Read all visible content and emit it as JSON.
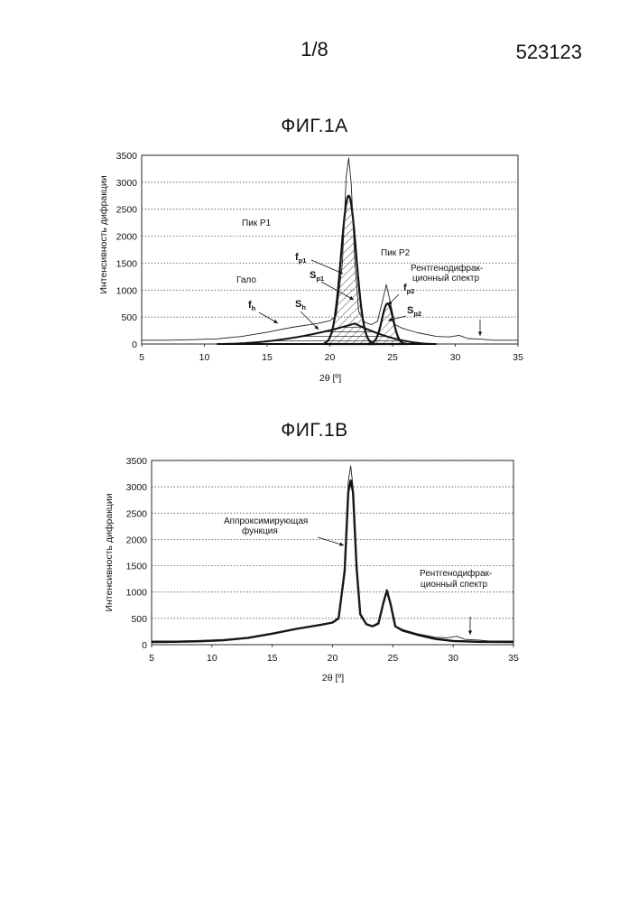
{
  "header": {
    "page_number": "1/8",
    "patent_number": "523123"
  },
  "chart_data": [
    {
      "type": "line",
      "title": "ФИГ.1A",
      "xlabel": "2θ [º]",
      "ylabel": "Интенсивность дифракции",
      "xlim": [
        5,
        35
      ],
      "ylim": [
        0,
        3500
      ],
      "x_ticks": [
        "5",
        "10",
        "15",
        "20",
        "25",
        "30",
        "35"
      ],
      "y_ticks": [
        "0",
        "500",
        "1000",
        "1500",
        "2000",
        "2500",
        "3000",
        "3500"
      ],
      "grid": "horizontal-dotted",
      "spectrum": {
        "x": [
          5,
          7,
          9,
          11,
          13,
          15,
          17,
          19,
          20,
          20.5,
          21,
          21.3,
          21.5,
          21.7,
          22,
          22.3,
          22.8,
          23.3,
          23.8,
          24.2,
          24.5,
          24.8,
          25.2,
          25.8,
          27,
          28.5,
          29.5,
          30.3,
          31,
          32,
          33,
          34,
          35
        ],
        "y": [
          70,
          70,
          80,
          95,
          140,
          220,
          310,
          380,
          430,
          520,
          1500,
          3100,
          3450,
          3000,
          1500,
          600,
          400,
          360,
          420,
          800,
          1100,
          800,
          360,
          290,
          210,
          140,
          130,
          160,
          100,
          90,
          70,
          70,
          70
        ]
      },
      "peaks": [
        {
          "label": "Пик Р1",
          "center": 21.5,
          "height": 2750,
          "width": 0.6
        },
        {
          "label": "Пик Р2",
          "center": 24.6,
          "height": 750,
          "width": 0.45
        }
      ],
      "halo": {
        "label": "Гало",
        "start": 11,
        "center": 22,
        "end": 28.5,
        "height": 380
      },
      "annotations": {
        "peak_p1": "Пик Р1",
        "peak_p2": "Пик Р2",
        "halo": "Гало",
        "spectrum_line1": "Рентгенодифрак-",
        "spectrum_line2": "ционный спектр",
        "fp1": "f",
        "fp1_sub": "p1",
        "sp1": "S",
        "sp1_sub": "p1",
        "fp2": "f",
        "fp2_sub": "p2",
        "sp2": "S",
        "sp2_sub": "p2",
        "fh": "f",
        "fh_sub": "h",
        "sh": "S",
        "sh_sub": "h"
      }
    },
    {
      "type": "line",
      "title": "ФИГ.1B",
      "xlabel": "2θ [º]",
      "ylabel": "Интенсивность дифракции",
      "xlim": [
        5,
        35
      ],
      "ylim": [
        0,
        3500
      ],
      "x_ticks": [
        "5",
        "10",
        "15",
        "20",
        "25",
        "30",
        "35"
      ],
      "y_ticks": [
        "0",
        "500",
        "1000",
        "1500",
        "2000",
        "2500",
        "3000",
        "3500"
      ],
      "grid": "horizontal-dotted",
      "spectrum": {
        "x": [
          5,
          7,
          9,
          11,
          13,
          15,
          17,
          19,
          20,
          20.5,
          21,
          21.3,
          21.5,
          21.7,
          22,
          22.3,
          22.8,
          23.3,
          23.8,
          24.2,
          24.5,
          24.8,
          25.2,
          25.8,
          27,
          28.5,
          29.5,
          30.3,
          31,
          32,
          33,
          34,
          35
        ],
        "y": [
          70,
          70,
          80,
          95,
          140,
          220,
          310,
          380,
          430,
          520,
          1500,
          3100,
          3400,
          3000,
          1500,
          600,
          400,
          360,
          420,
          800,
          1050,
          800,
          360,
          290,
          210,
          140,
          130,
          160,
          100,
          90,
          70,
          70,
          70
        ]
      },
      "fit": {
        "x": [
          5,
          7,
          9,
          11,
          13,
          15,
          17,
          19,
          20,
          20.5,
          21,
          21.3,
          21.5,
          21.7,
          22,
          22.3,
          22.8,
          23.3,
          23.8,
          24.2,
          24.5,
          24.8,
          25.2,
          25.8,
          27,
          28.5,
          30,
          32,
          35
        ],
        "y": [
          50,
          55,
          65,
          85,
          130,
          210,
          300,
          375,
          420,
          500,
          1400,
          2900,
          3120,
          2900,
          1450,
          580,
          390,
          350,
          400,
          780,
          1030,
          780,
          350,
          270,
          190,
          110,
          70,
          55,
          50
        ]
      },
      "annotations": {
        "fit_line1": "Аппроксимирующая",
        "fit_line2": "функция",
        "spectrum_line1": "Рентгенодифрак-",
        "spectrum_line2": "ционный спектр"
      }
    }
  ]
}
